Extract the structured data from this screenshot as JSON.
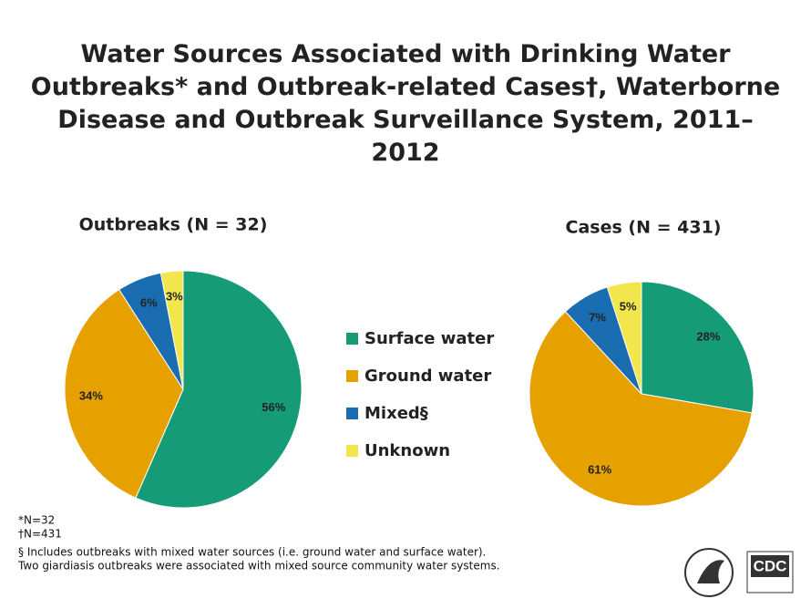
{
  "title": "Water Sources Associated with Drinking Water Outbreaks* and Outbreak-related Cases†, Waterborne Disease and Outbreak Surveillance System, 2011–2012",
  "chart_data": [
    {
      "type": "pie",
      "title": "Outbreaks (N = 32)",
      "categories": [
        "Surface water",
        "Ground water",
        "Mixed§",
        "Unknown"
      ],
      "values": [
        56,
        34,
        6,
        3
      ],
      "value_labels": [
        "56%",
        "34%",
        "6%",
        "3%"
      ],
      "colors": [
        "#169b77",
        "#e6a100",
        "#1a6db0",
        "#f1e64c"
      ]
    },
    {
      "type": "pie",
      "title": "Cases (N = 431)",
      "categories": [
        "Surface water",
        "Ground water",
        "Mixed§",
        "Unknown"
      ],
      "values": [
        28,
        61,
        7,
        5
      ],
      "value_labels": [
        "28%",
        "61%",
        "7%",
        "5%"
      ],
      "colors": [
        "#169b77",
        "#e6a100",
        "#1a6db0",
        "#f1e64c"
      ]
    }
  ],
  "footnotes": [
    "*N=32",
    "†N=431",
    "§ Includes outbreaks with mixed water sources (i.e. ground water and surface water).",
    "Two giardiasis outbreaks were associated with mixed source community water systems."
  ],
  "logo_text": "CDC"
}
